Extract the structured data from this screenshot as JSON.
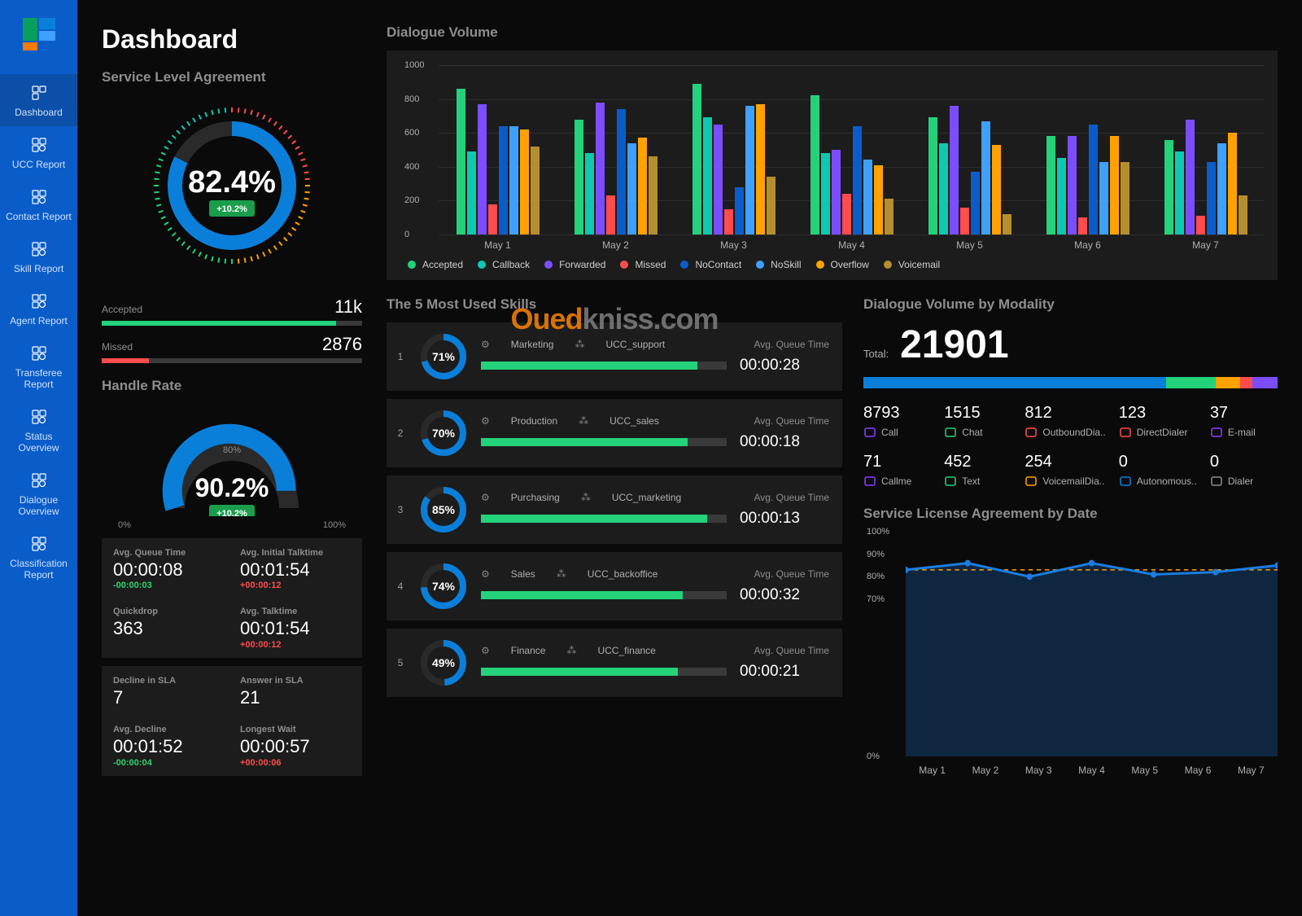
{
  "palette": {
    "sidebarBg": "#0a5dc9",
    "sidebarActive": "#0b4fa8",
    "panel": "#1c1c1c",
    "green": "#23d27a",
    "teal": "#0ec9b0",
    "purple": "#7c4dff",
    "red": "#ff4c4c",
    "blue": "#0a7fd9",
    "darkblue": "#0a5dc9",
    "orange": "#ffa200",
    "khaki": "#b58f2f",
    "lightblue": "#40a0ff"
  },
  "sidebar": {
    "items": [
      {
        "label": "Dashboard",
        "active": true
      },
      {
        "label": "UCC Report"
      },
      {
        "label": "Contact Report"
      },
      {
        "label": "Skill Report"
      },
      {
        "label": "Agent Report"
      },
      {
        "label": "Transferee Report"
      },
      {
        "label": "Status Overview"
      },
      {
        "label": "Dialogue Overview"
      },
      {
        "label": "Classification Report"
      }
    ]
  },
  "page": {
    "title": "Dashboard"
  },
  "sla": {
    "title": "Service Level Agreement",
    "pct": "82.4%",
    "badge": "+10.2%",
    "donutPct": 82.4,
    "stats": [
      {
        "label": "Accepted",
        "value": "11k",
        "pct": 90,
        "color": "#23d27a"
      },
      {
        "label": "Missed",
        "value": "2876",
        "pct": 18,
        "color": "#ff4c4c"
      }
    ]
  },
  "handle": {
    "title": "Handle Rate",
    "pct": "90.2%",
    "badge": "+10.2%",
    "gaugePct": 90.2,
    "range": {
      "min": "0%",
      "mid": "80%",
      "max": "100%"
    }
  },
  "metrics1": [
    {
      "label": "Avg. Queue Time",
      "value": "00:00:08",
      "delta": "-00:00:03",
      "deltaClass": "green"
    },
    {
      "label": "Avg. Initial Talktime",
      "value": "00:01:54",
      "delta": "+00:00:12",
      "deltaClass": "red"
    },
    {
      "label": "Quickdrop",
      "value": "363"
    },
    {
      "label": "Avg. Talktime",
      "value": "00:01:54",
      "delta": "+00:00:12",
      "deltaClass": "red"
    }
  ],
  "metrics2": [
    {
      "label": "Decline in SLA",
      "value": "7"
    },
    {
      "label": "Answer in SLA",
      "value": "21"
    },
    {
      "label": "Avg. Decline",
      "value": "00:01:52",
      "delta": "-00:00:04",
      "deltaClass": "green"
    },
    {
      "label": "Longest Wait",
      "value": "00:00:57",
      "delta": "+00:00:06",
      "deltaClass": "red"
    }
  ],
  "dialogueVolume": {
    "title": "Dialogue Volume",
    "ymax": 1000,
    "yticks": [
      0,
      200,
      400,
      600,
      800,
      1000
    ],
    "categories": [
      "May 1",
      "May 2",
      "May 3",
      "May 4",
      "May 5",
      "May 6",
      "May 7"
    ],
    "series": [
      "Accepted",
      "Callback",
      "Forwarded",
      "Missed",
      "NoContact",
      "NoSkill",
      "Overflow",
      "Voicemail"
    ],
    "colors": [
      "#23d27a",
      "#0ec9b0",
      "#7c4dff",
      "#ff4c4c",
      "#0a5dc9",
      "#40a0ff",
      "#ffa200",
      "#b58f2f"
    ],
    "data": [
      [
        860,
        490,
        770,
        180,
        640,
        640,
        620,
        520
      ],
      [
        680,
        480,
        780,
        230,
        740,
        540,
        570,
        460
      ],
      [
        890,
        690,
        650,
        150,
        280,
        760,
        770,
        340
      ],
      [
        820,
        480,
        500,
        240,
        640,
        440,
        410,
        210
      ],
      [
        690,
        540,
        760,
        160,
        370,
        670,
        530,
        120
      ],
      [
        580,
        450,
        580,
        100,
        650,
        430,
        580,
        430
      ],
      [
        560,
        490,
        680,
        110,
        430,
        540,
        600,
        230
      ]
    ]
  },
  "skills": {
    "title": "The 5 Most Used Skills",
    "colLabel": "Avg. Queue Time",
    "rows": [
      {
        "pct": 71,
        "name": "Marketing",
        "ucc": "UCC_support",
        "time": "00:00:28",
        "bar": 88
      },
      {
        "pct": 70,
        "name": "Production",
        "ucc": "UCC_sales",
        "time": "00:00:18",
        "bar": 84
      },
      {
        "pct": 85,
        "name": "Purchasing",
        "ucc": "UCC_marketing",
        "time": "00:00:13",
        "bar": 92
      },
      {
        "pct": 74,
        "name": "Sales",
        "ucc": "UCC_backoffice",
        "time": "00:00:32",
        "bar": 82
      },
      {
        "pct": 49,
        "name": "Finance",
        "ucc": "UCC_finance",
        "time": "00:00:21",
        "bar": 80
      }
    ]
  },
  "modality": {
    "title": "Dialogue Volume by Modality",
    "totalLabel": "Total:",
    "total": "21901",
    "segments": [
      {
        "color": "#0a7fd9",
        "pct": 73
      },
      {
        "color": "#23d27a",
        "pct": 12
      },
      {
        "color": "#ffa200",
        "pct": 6
      },
      {
        "color": "#ff4c4c",
        "pct": 3
      },
      {
        "color": "#7c4dff",
        "pct": 6
      }
    ],
    "cells": [
      {
        "val": "8793",
        "label": "Call",
        "color": "#8a3ffc"
      },
      {
        "val": "1515",
        "label": "Chat",
        "color": "#23d27a"
      },
      {
        "val": "812",
        "label": "OutboundDia..",
        "color": "#ff4c4c"
      },
      {
        "val": "123",
        "label": "DirectDialer",
        "color": "#ff4c4c"
      },
      {
        "val": "37",
        "label": "E-mail",
        "color": "#8a3ffc"
      },
      {
        "val": "71",
        "label": "Callme",
        "color": "#8a3ffc"
      },
      {
        "val": "452",
        "label": "Text",
        "color": "#23d27a"
      },
      {
        "val": "254",
        "label": "VoicemailDia..",
        "color": "#ffa200"
      },
      {
        "val": "0",
        "label": "Autonomous..",
        "color": "#0a7fd9"
      },
      {
        "val": "0",
        "label": "Dialer",
        "color": "#8e8e8e"
      }
    ]
  },
  "slaByDate": {
    "title": "Service License Agreement by Date",
    "ylim": [
      0,
      100
    ],
    "yticks": [
      0,
      70,
      80,
      90,
      100
    ],
    "categories": [
      "May 1",
      "May 2",
      "May 3",
      "May 4",
      "May 5",
      "May 6",
      "May 7"
    ],
    "values": [
      83,
      86,
      80,
      86,
      81,
      82,
      85
    ],
    "lineColor": "#1a7de0",
    "fillColor": "rgba(26,125,224,0.25)",
    "threshold": 83,
    "thresholdColor": "#ffa200"
  },
  "watermark": {
    "a": "Oued",
    "b": "kniss",
    "c": ".com"
  }
}
